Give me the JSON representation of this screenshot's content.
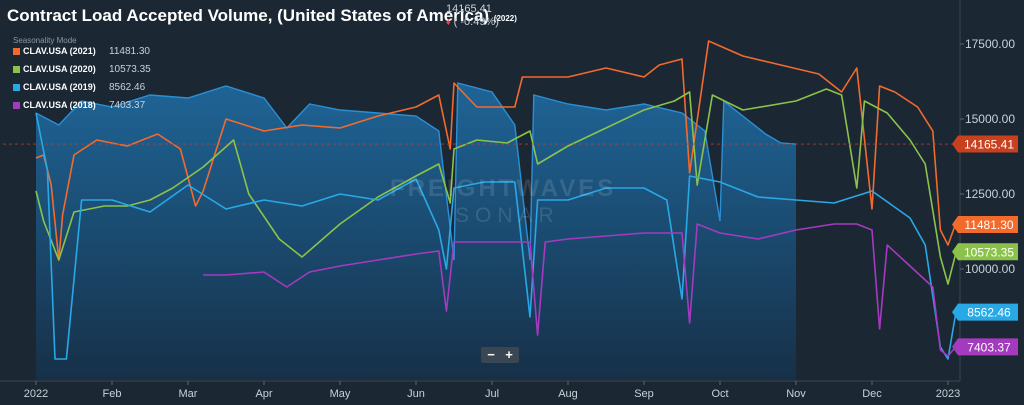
{
  "header": {
    "title": "Contract Load Accepted Volume, (United States of America)",
    "title_suffix": "(2022)",
    "current_value": "14165.41",
    "change": "( -0.49%)",
    "mode_label": "Seasonality Mode"
  },
  "legend": [
    {
      "name": "CLAV.USA (2021)",
      "value": "11481.30",
      "color": "#f26b2d"
    },
    {
      "name": "CLAV.USA (2020)",
      "value": "10573.35",
      "color": "#8bc34a"
    },
    {
      "name": "CLAV.USA (2019)",
      "value": "8562.46",
      "color": "#29a8e6"
    },
    {
      "name": "CLAV.USA (2018)",
      "value": "7403.37",
      "color": "#a43bbf"
    }
  ],
  "controls": {
    "zoom_out": "−",
    "zoom_in": "+"
  },
  "watermark": {
    "line1": "FREIGHTWAVES",
    "line2": "SONAR"
  },
  "chart_data": {
    "type": "line",
    "x_axis": {
      "ticks": [
        "2022",
        "Feb",
        "Mar",
        "Apr",
        "May",
        "Jun",
        "Jul",
        "Aug",
        "Sep",
        "Oct",
        "Nov",
        "Dec",
        "2023"
      ]
    },
    "y_axis": {
      "ticks": [
        "17500.00",
        "15000.00",
        "12500.00",
        "10000.00"
      ],
      "ylim": [
        6500,
        19000
      ],
      "side": "right"
    },
    "grid": false,
    "current_line_value": 14165.41,
    "area_series": {
      "name": "CLAV.USA (2022)",
      "color": "#1f6fa8",
      "points": [
        [
          0.0,
          15200
        ],
        [
          0.3,
          14800
        ],
        [
          0.6,
          15600
        ],
        [
          1.0,
          15400
        ],
        [
          1.5,
          15800
        ],
        [
          2.0,
          15700
        ],
        [
          2.5,
          16100
        ],
        [
          3.0,
          15700
        ],
        [
          3.3,
          14700
        ],
        [
          3.6,
          15500
        ],
        [
          4.0,
          15300
        ],
        [
          4.5,
          15200
        ],
        [
          5.0,
          15100
        ],
        [
          5.3,
          14600
        ],
        [
          5.5,
          10300
        ],
        [
          5.55,
          16200
        ],
        [
          6.0,
          15900
        ],
        [
          6.3,
          14800
        ],
        [
          6.5,
          10300
        ],
        [
          6.55,
          15800
        ],
        [
          7.0,
          15500
        ],
        [
          7.5,
          15300
        ],
        [
          8.0,
          15500
        ],
        [
          8.5,
          15200
        ],
        [
          8.8,
          14600
        ],
        [
          9.0,
          11600
        ],
        [
          9.05,
          15600
        ],
        [
          9.3,
          15100
        ],
        [
          9.6,
          14500
        ],
        [
          9.8,
          14200
        ],
        [
          10.0,
          14165
        ]
      ]
    },
    "series": [
      {
        "name": "CLAV.USA (2021)",
        "color": "#f26b2d",
        "label": "11481.30",
        "label_value": 11481.3,
        "points": [
          [
            0,
            13700
          ],
          [
            0.1,
            13800
          ],
          [
            0.2,
            12800
          ],
          [
            0.3,
            10300
          ],
          [
            0.35,
            11800
          ],
          [
            0.5,
            13800
          ],
          [
            0.8,
            14300
          ],
          [
            1.2,
            14100
          ],
          [
            1.6,
            14500
          ],
          [
            1.9,
            14000
          ],
          [
            2.1,
            12100
          ],
          [
            2.2,
            12600
          ],
          [
            2.5,
            15000
          ],
          [
            3.0,
            14600
          ],
          [
            3.5,
            14800
          ],
          [
            4.0,
            14700
          ],
          [
            4.5,
            15100
          ],
          [
            5.0,
            15400
          ],
          [
            5.3,
            15800
          ],
          [
            5.45,
            14000
          ],
          [
            5.5,
            16200
          ],
          [
            5.8,
            15400
          ],
          [
            6.3,
            15400
          ],
          [
            6.4,
            16400
          ],
          [
            7.0,
            16400
          ],
          [
            7.5,
            16700
          ],
          [
            8.0,
            16400
          ],
          [
            8.2,
            16800
          ],
          [
            8.5,
            17000
          ],
          [
            8.6,
            13200
          ],
          [
            8.85,
            17600
          ],
          [
            9.3,
            17100
          ],
          [
            9.8,
            16800
          ],
          [
            10.3,
            16500
          ],
          [
            10.6,
            15900
          ],
          [
            10.8,
            16700
          ],
          [
            11.0,
            12000
          ],
          [
            11.1,
            16100
          ],
          [
            11.3,
            15900
          ],
          [
            11.6,
            15400
          ],
          [
            11.8,
            14600
          ],
          [
            11.9,
            11300
          ],
          [
            12.0,
            10800
          ],
          [
            12.1,
            11500
          ]
        ]
      },
      {
        "name": "CLAV.USA (2020)",
        "color": "#8bc34a",
        "label": "10573.35",
        "label_value": 10573.35,
        "points": [
          [
            0,
            12600
          ],
          [
            0.1,
            11600
          ],
          [
            0.3,
            10300
          ],
          [
            0.5,
            11900
          ],
          [
            0.9,
            12100
          ],
          [
            1.2,
            12100
          ],
          [
            1.5,
            12300
          ],
          [
            1.8,
            12700
          ],
          [
            2.2,
            13400
          ],
          [
            2.6,
            14300
          ],
          [
            2.8,
            12500
          ],
          [
            3.2,
            11000
          ],
          [
            3.5,
            10400
          ],
          [
            4.0,
            11500
          ],
          [
            4.5,
            12400
          ],
          [
            5.0,
            13100
          ],
          [
            5.3,
            13500
          ],
          [
            5.45,
            12200
          ],
          [
            5.5,
            14000
          ],
          [
            5.8,
            14300
          ],
          [
            6.2,
            14200
          ],
          [
            6.5,
            14600
          ],
          [
            6.6,
            13500
          ],
          [
            7.0,
            14100
          ],
          [
            7.5,
            14700
          ],
          [
            8.0,
            15300
          ],
          [
            8.4,
            15600
          ],
          [
            8.6,
            15900
          ],
          [
            8.7,
            12800
          ],
          [
            8.9,
            15800
          ],
          [
            9.3,
            15300
          ],
          [
            10.0,
            15600
          ],
          [
            10.4,
            16000
          ],
          [
            10.6,
            15800
          ],
          [
            10.8,
            12700
          ],
          [
            10.9,
            15600
          ],
          [
            11.2,
            15200
          ],
          [
            11.5,
            14300
          ],
          [
            11.7,
            13500
          ],
          [
            11.9,
            10400
          ],
          [
            12.0,
            9500
          ],
          [
            12.1,
            10500
          ]
        ]
      },
      {
        "name": "CLAV.USA (2019)",
        "color": "#29a8e6",
        "label": "8562.46",
        "label_value": 8562.46,
        "points": [
          [
            0,
            15200
          ],
          [
            0.15,
            13300
          ],
          [
            0.25,
            7000
          ],
          [
            0.4,
            7000
          ],
          [
            0.6,
            12300
          ],
          [
            1.0,
            12300
          ],
          [
            1.5,
            11900
          ],
          [
            2.0,
            12800
          ],
          [
            2.5,
            12000
          ],
          [
            3.0,
            12300
          ],
          [
            3.5,
            12100
          ],
          [
            4.0,
            12500
          ],
          [
            4.5,
            12300
          ],
          [
            5.0,
            13000
          ],
          [
            5.3,
            11300
          ],
          [
            5.4,
            10000
          ],
          [
            5.5,
            12700
          ],
          [
            5.9,
            12900
          ],
          [
            6.3,
            12900
          ],
          [
            6.5,
            8400
          ],
          [
            6.6,
            12300
          ],
          [
            7.0,
            12300
          ],
          [
            7.5,
            12700
          ],
          [
            8.0,
            12700
          ],
          [
            8.3,
            12300
          ],
          [
            8.5,
            9000
          ],
          [
            8.6,
            13100
          ],
          [
            9.0,
            12900
          ],
          [
            9.5,
            12400
          ],
          [
            10.0,
            12300
          ],
          [
            10.5,
            12200
          ],
          [
            11.0,
            12600
          ],
          [
            11.5,
            11700
          ],
          [
            11.7,
            10800
          ],
          [
            11.9,
            7400
          ],
          [
            12.0,
            7000
          ],
          [
            12.1,
            8500
          ]
        ]
      },
      {
        "name": "CLAV.USA (2018)",
        "color": "#a43bbf",
        "label": "7403.37",
        "label_value": 7403.37,
        "points": [
          [
            2.2,
            9800
          ],
          [
            2.5,
            9800
          ],
          [
            3.0,
            9900
          ],
          [
            3.3,
            9400
          ],
          [
            3.6,
            9900
          ],
          [
            4.0,
            10100
          ],
          [
            4.5,
            10300
          ],
          [
            5.0,
            10500
          ],
          [
            5.3,
            10600
          ],
          [
            5.4,
            8600
          ],
          [
            5.5,
            10900
          ],
          [
            6.0,
            10900
          ],
          [
            6.5,
            10900
          ],
          [
            6.6,
            7800
          ],
          [
            6.7,
            10900
          ],
          [
            7.0,
            11000
          ],
          [
            7.5,
            11100
          ],
          [
            8.0,
            11200
          ],
          [
            8.5,
            11200
          ],
          [
            8.6,
            8200
          ],
          [
            8.7,
            11500
          ],
          [
            9.0,
            11200
          ],
          [
            9.5,
            11000
          ],
          [
            10.0,
            11300
          ],
          [
            10.5,
            11500
          ],
          [
            10.8,
            11500
          ],
          [
            11.0,
            11300
          ],
          [
            11.1,
            8000
          ],
          [
            11.2,
            10800
          ],
          [
            11.5,
            10100
          ],
          [
            11.8,
            9400
          ],
          [
            11.9,
            7300
          ],
          [
            12.0,
            7100
          ],
          [
            12.1,
            7400
          ]
        ]
      }
    ]
  }
}
